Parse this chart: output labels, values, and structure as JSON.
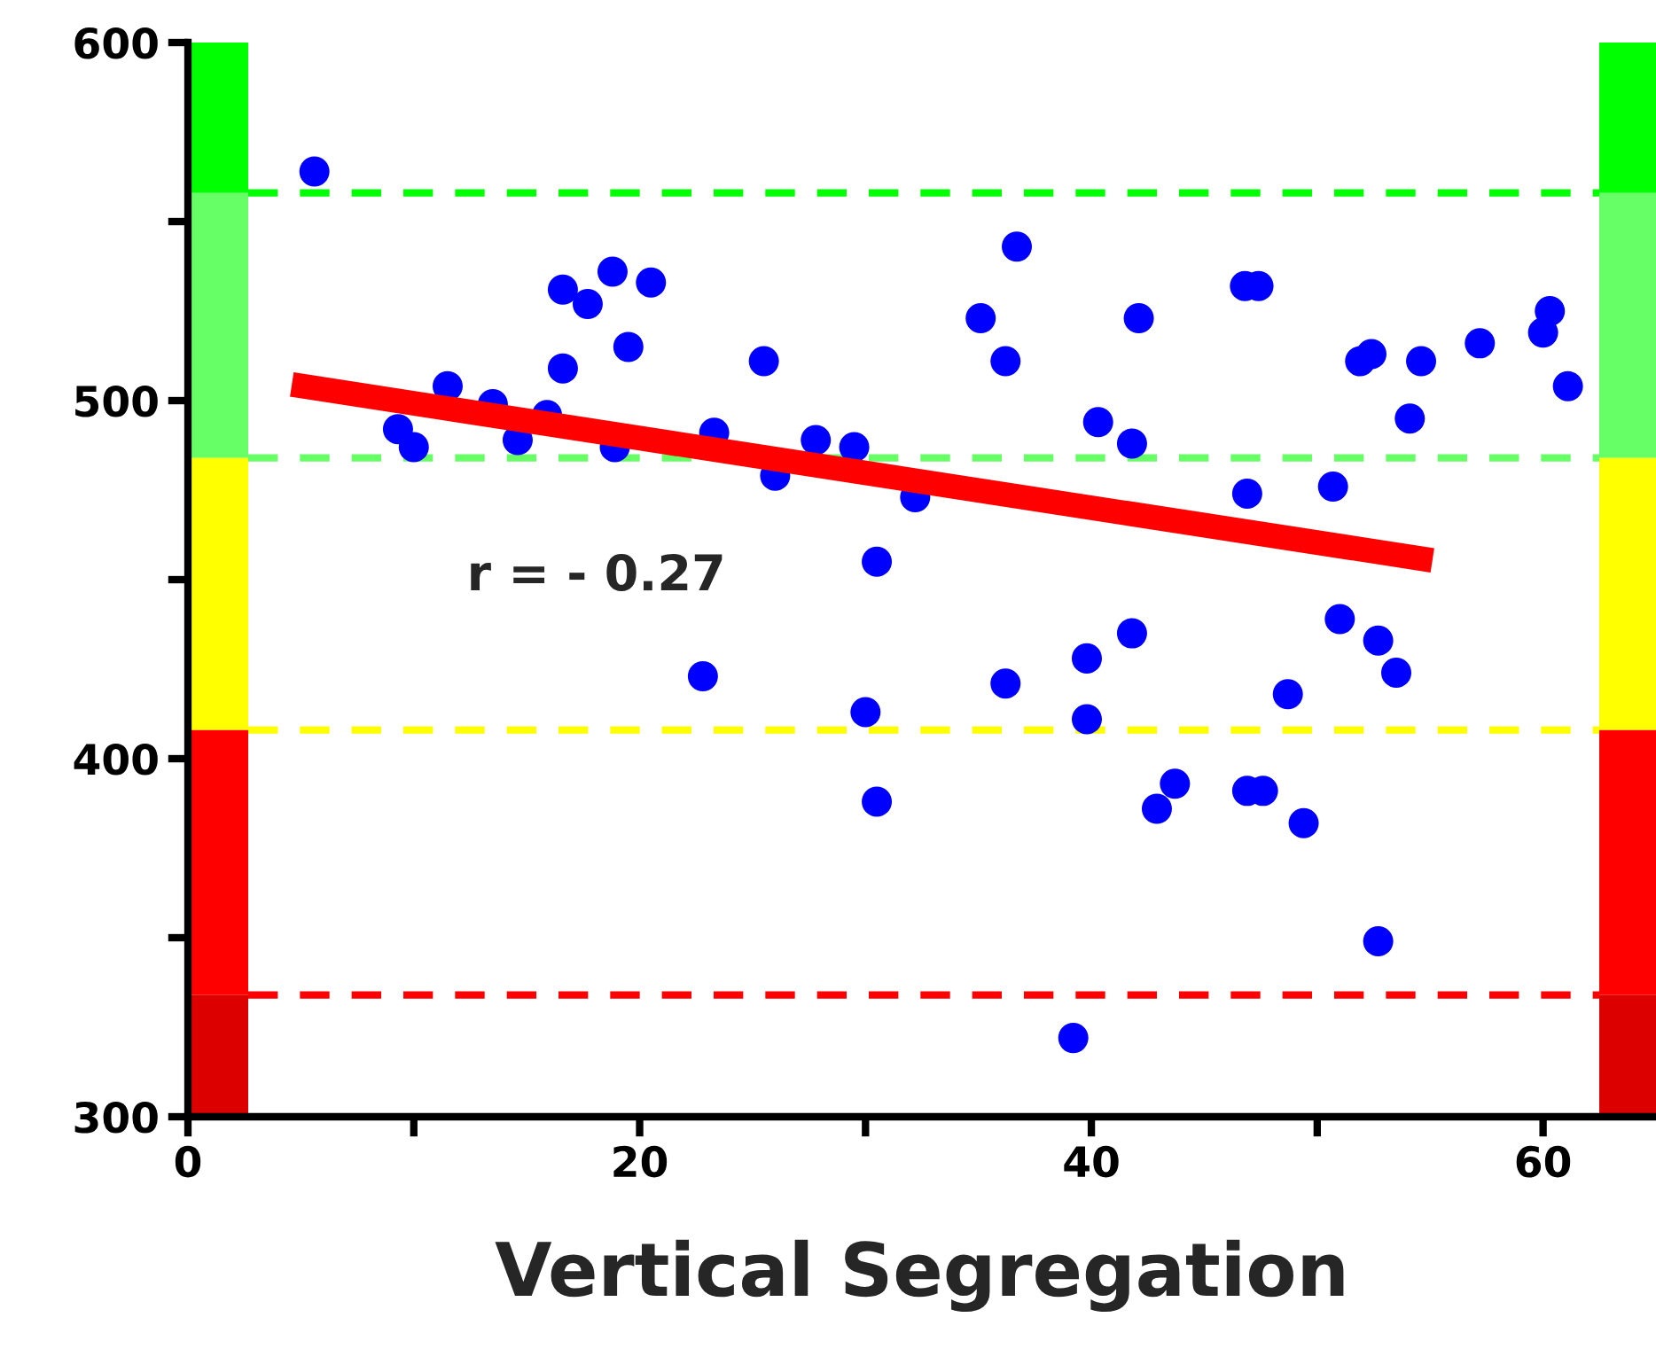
{
  "chart_data": {
    "type": "scatter",
    "xlabel": "Vertical Segregation",
    "xlim": [
      0,
      65
    ],
    "ylim": [
      300,
      600
    ],
    "xticks": [
      0,
      {
        "value": 10,
        "label": null
      },
      20,
      {
        "value": 30,
        "label": null
      },
      40,
      {
        "value": 50,
        "label": null
      },
      60
    ],
    "yticks": [
      300,
      {
        "value": 350,
        "label": null
      },
      400,
      {
        "value": 450,
        "label": null
      },
      500,
      {
        "value": 550,
        "label": null
      },
      600
    ],
    "marker": "circle",
    "legend": false,
    "series": [
      {
        "type": "scatter",
        "color": "#0000ff",
        "x": [
          5.6,
          9.3,
          10.0,
          11.5,
          13.5,
          14.6,
          15.9,
          16.6,
          16.6,
          17.7,
          18.8,
          19.5,
          20.5,
          18.9,
          22.8,
          23.3,
          25.5,
          26.0,
          27.8,
          29.5,
          30.0,
          30.5,
          30.5,
          32.2,
          36.7,
          35.1,
          36.2,
          42.1,
          40.3,
          41.8,
          46.8,
          47.4,
          51.9,
          52.4,
          54.6,
          54.1,
          57.2,
          60.3,
          60.0,
          61.1,
          46.9,
          50.7,
          41.8,
          51.0,
          52.7,
          53.5,
          39.8,
          36.2,
          48.7,
          39.8,
          42.9,
          43.7,
          46.9,
          47.6,
          49.4,
          52.7,
          39.2
        ],
        "values": [
          564,
          492,
          487,
          504,
          499,
          489,
          496,
          531,
          509,
          527,
          536,
          515,
          533,
          487,
          423,
          491,
          511,
          479,
          489,
          487,
          413,
          455,
          388,
          473,
          543,
          523,
          511,
          523,
          494,
          488,
          532,
          532,
          511,
          513,
          511,
          495,
          516,
          525,
          519,
          504,
          474,
          476,
          435,
          439,
          433,
          424,
          428,
          421,
          418,
          411,
          386,
          393,
          391,
          391,
          382,
          349,
          322
        ]
      },
      {
        "type": "line",
        "marker": "none",
        "color": "#ff0000",
        "x": [
          4.6,
          55.1
        ],
        "values": [
          504.5,
          455.4
        ]
      }
    ],
    "bands": [
      {
        "axis": "y",
        "from": 558,
        "to": 600,
        "color": "#00ff00"
      },
      {
        "axis": "y",
        "from": 484,
        "to": 558,
        "color": "#66ff66"
      },
      {
        "axis": "y",
        "from": 408,
        "to": 484,
        "color": "#ffff00"
      },
      {
        "axis": "y",
        "from": 334,
        "to": 408,
        "color": "#ff0000"
      },
      {
        "axis": "y",
        "from": 300,
        "to": 334,
        "color": "#dd0000"
      }
    ],
    "ref_lines": [
      {
        "axis": "y",
        "value": 558,
        "color": "#00ff00",
        "line_style": "dashed"
      },
      {
        "axis": "y",
        "value": 484,
        "color": "#66ff66",
        "line_style": "dashed"
      },
      {
        "axis": "y",
        "value": 408,
        "color": "#ffff00",
        "line_style": "dashed"
      },
      {
        "axis": "y",
        "value": 334,
        "color": "#ff0000",
        "line_style": "dashed"
      }
    ],
    "annotations": [
      "r = - 0.27"
    ]
  }
}
